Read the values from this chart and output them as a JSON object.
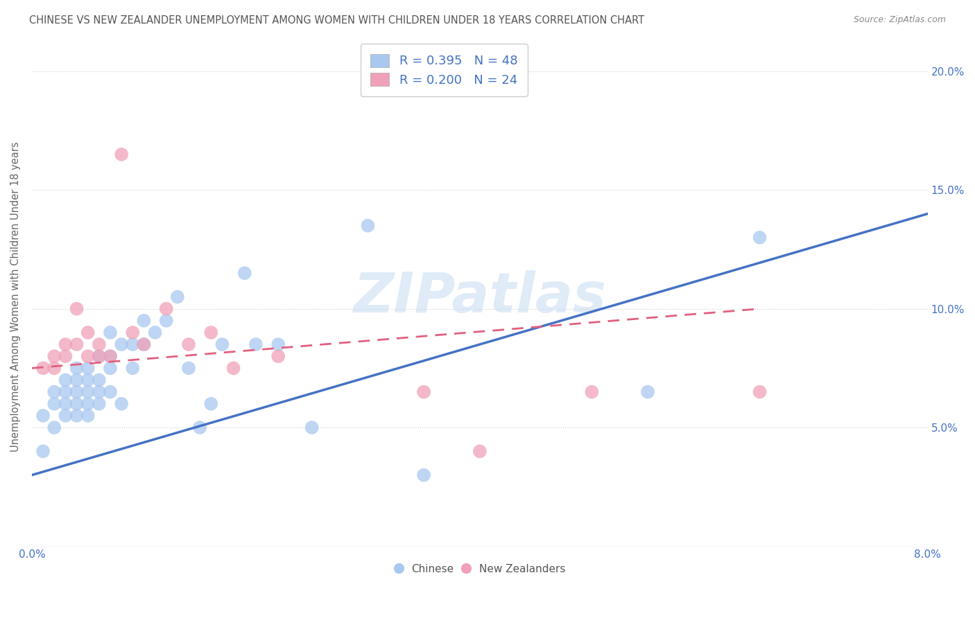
{
  "title": "CHINESE VS NEW ZEALANDER UNEMPLOYMENT AMONG WOMEN WITH CHILDREN UNDER 18 YEARS CORRELATION CHART",
  "source": "Source: ZipAtlas.com",
  "ylabel": "Unemployment Among Women with Children Under 18 years",
  "xlim": [
    0.0,
    0.08
  ],
  "ylim": [
    0.0,
    0.21
  ],
  "x_ticks": [
    0.0,
    0.01,
    0.02,
    0.03,
    0.04,
    0.05,
    0.06,
    0.07,
    0.08
  ],
  "y_ticks": [
    0.0,
    0.05,
    0.1,
    0.15,
    0.2
  ],
  "y_tick_labels": [
    "",
    "5.0%",
    "10.0%",
    "15.0%",
    "20.0%"
  ],
  "blue_color": "#A8C8F0",
  "pink_color": "#F0A0B8",
  "blue_line_color": "#4472C4",
  "pink_line_color": "#E06080",
  "legend_R1": "R = 0.395",
  "legend_N1": "N = 48",
  "legend_R2": "R = 0.200",
  "legend_N2": "N = 24",
  "watermark": "ZIPatlas",
  "chinese_x": [
    0.001,
    0.001,
    0.002,
    0.002,
    0.002,
    0.003,
    0.003,
    0.003,
    0.003,
    0.004,
    0.004,
    0.004,
    0.004,
    0.004,
    0.005,
    0.005,
    0.005,
    0.005,
    0.005,
    0.006,
    0.006,
    0.006,
    0.006,
    0.007,
    0.007,
    0.007,
    0.007,
    0.008,
    0.008,
    0.009,
    0.009,
    0.01,
    0.01,
    0.011,
    0.012,
    0.013,
    0.014,
    0.015,
    0.016,
    0.017,
    0.019,
    0.02,
    0.022,
    0.025,
    0.03,
    0.035,
    0.055,
    0.065
  ],
  "chinese_y": [
    0.04,
    0.055,
    0.06,
    0.065,
    0.05,
    0.06,
    0.065,
    0.055,
    0.07,
    0.07,
    0.065,
    0.06,
    0.055,
    0.075,
    0.065,
    0.06,
    0.055,
    0.075,
    0.07,
    0.07,
    0.065,
    0.06,
    0.08,
    0.08,
    0.075,
    0.065,
    0.09,
    0.085,
    0.06,
    0.075,
    0.085,
    0.085,
    0.095,
    0.09,
    0.095,
    0.105,
    0.075,
    0.05,
    0.06,
    0.085,
    0.115,
    0.085,
    0.085,
    0.05,
    0.135,
    0.03,
    0.065,
    0.13
  ],
  "nz_x": [
    0.001,
    0.002,
    0.002,
    0.003,
    0.003,
    0.004,
    0.004,
    0.005,
    0.005,
    0.006,
    0.006,
    0.007,
    0.008,
    0.009,
    0.01,
    0.012,
    0.014,
    0.016,
    0.018,
    0.022,
    0.035,
    0.04,
    0.05,
    0.065
  ],
  "nz_y": [
    0.075,
    0.075,
    0.08,
    0.08,
    0.085,
    0.085,
    0.1,
    0.08,
    0.09,
    0.08,
    0.085,
    0.08,
    0.165,
    0.09,
    0.085,
    0.1,
    0.085,
    0.09,
    0.075,
    0.08,
    0.065,
    0.04,
    0.065,
    0.065
  ],
  "blue_trendline_x": [
    0.0,
    0.08
  ],
  "blue_trendline_y": [
    0.03,
    0.14
  ],
  "pink_trendline_x": [
    0.0,
    0.065
  ],
  "pink_trendline_y": [
    0.075,
    0.1
  ]
}
